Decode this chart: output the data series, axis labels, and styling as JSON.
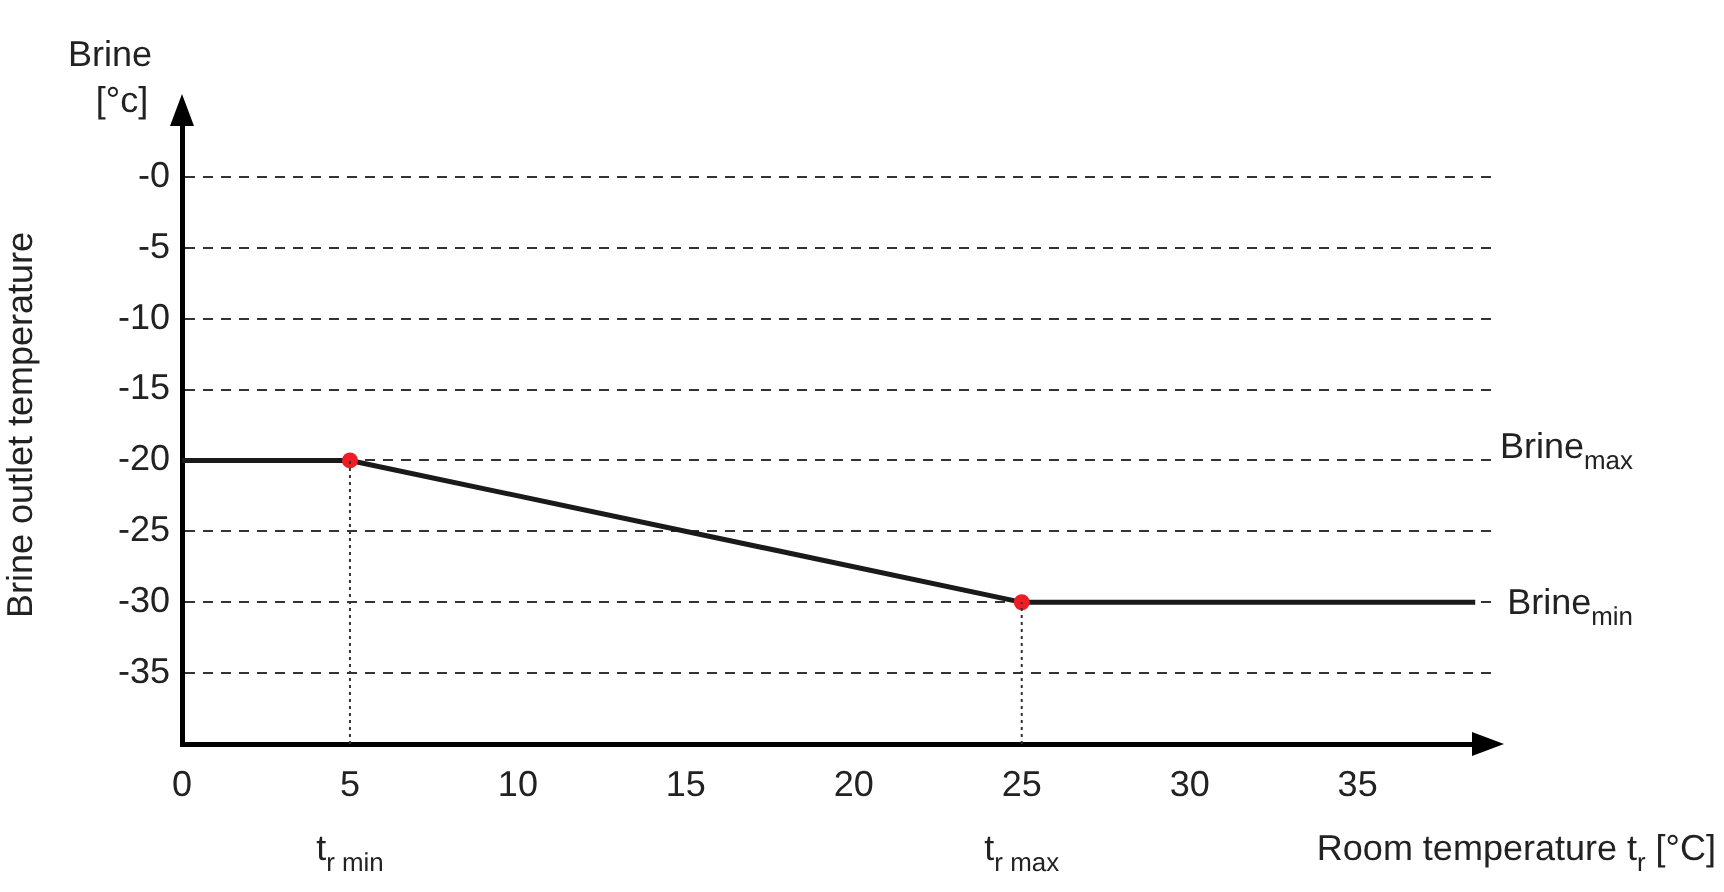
{
  "chart_data": {
    "type": "line",
    "ylabel": "Brine outlet temperature",
    "xlabel": "Room temperature t$_{r}$ [°C]",
    "xlim": [
      0,
      39
    ],
    "xticks": [
      0,
      5,
      10,
      15,
      20,
      25,
      30,
      35
    ],
    "ylim": [
      -40,
      5
    ],
    "yticks": [
      {
        "value": 0,
        "label": "-0"
      },
      -5,
      -10,
      -15,
      -20,
      -25,
      -30,
      -35
    ],
    "grid": "y",
    "legend": false,
    "series": [
      {
        "color": "#1a1a1a",
        "marker": "none",
        "line_style": "solid",
        "x": [
          0,
          5,
          25,
          38.5
        ],
        "values": [
          -20,
          -20,
          -30,
          -30
        ]
      },
      {
        "type": "scatter",
        "color": "#ee1c25",
        "marker": "circle",
        "x": [
          5,
          25
        ],
        "values": [
          -20,
          -30
        ]
      }
    ],
    "ref_lines": [
      {
        "axis": "x",
        "value": 5,
        "label": "t$_{r min}$",
        "line_style": "dotted",
        "color": "#333333"
      },
      {
        "axis": "x",
        "value": 25,
        "label": "t$_{r max}$",
        "line_style": "dotted",
        "color": "#333333"
      }
    ],
    "annotations": [
      "Brine\n[°c]",
      "Brine$_{max}$",
      {
        "text": "Brine$_{min}$",
        "x": 38.5,
        "y": -30
      }
    ]
  }
}
